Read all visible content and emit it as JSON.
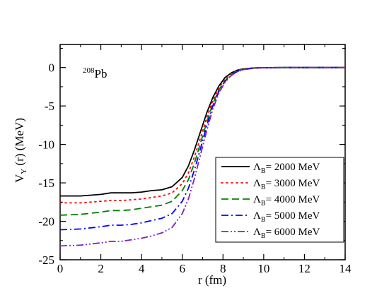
{
  "chart_data": {
    "type": "line",
    "xlabel": "r (fm)",
    "ylabel": "V_Y (r)  (MeV)",
    "ylabel_main": "V",
    "ylabel_sub": "Y",
    "ylabel_rest": " (r)  (MeV)",
    "xlim": [
      0,
      14
    ],
    "ylim": [
      -25,
      3
    ],
    "xticks": [
      0,
      2,
      4,
      6,
      8,
      10,
      12,
      14
    ],
    "yticks": [
      0,
      -5,
      -10,
      -15,
      -20,
      -25
    ],
    "annotation": {
      "sup": "208",
      "text": "Pb",
      "x": 2.2,
      "y": -0.4
    },
    "legend_placement": "lower-right",
    "series": [
      {
        "name": "Λ_B= 2000 MeV",
        "color": "#000000",
        "dash": "",
        "x": [
          0,
          1,
          2,
          2.5,
          3,
          3.5,
          4,
          4.5,
          5,
          5.5,
          6,
          6.3,
          6.6,
          6.9,
          7.2,
          7.5,
          7.8,
          8.1,
          8.4,
          8.7,
          9,
          9.5,
          10,
          11,
          12,
          14
        ],
        "y": [
          -16.7,
          -16.7,
          -16.5,
          -16.3,
          -16.3,
          -16.3,
          -16.2,
          -16.0,
          -15.9,
          -15.5,
          -14.3,
          -12.8,
          -10.7,
          -8.3,
          -5.9,
          -3.9,
          -2.4,
          -1.3,
          -0.7,
          -0.35,
          -0.17,
          -0.06,
          -0.02,
          0,
          0,
          0
        ]
      },
      {
        "name": "Λ_B= 3000 MeV",
        "color": "#ff0000",
        "dash": "2,5",
        "x": [
          0,
          1,
          2,
          2.5,
          3,
          3.5,
          4,
          4.5,
          5,
          5.5,
          6,
          6.3,
          6.6,
          6.9,
          7.2,
          7.5,
          7.8,
          8.1,
          8.4,
          8.7,
          9,
          9.5,
          10,
          11,
          12,
          14
        ],
        "y": [
          -17.6,
          -17.6,
          -17.4,
          -17.3,
          -17.3,
          -17.2,
          -17.1,
          -16.9,
          -16.7,
          -16.3,
          -15.1,
          -13.7,
          -11.6,
          -9.1,
          -6.5,
          -4.3,
          -2.7,
          -1.5,
          -0.8,
          -0.4,
          -0.2,
          -0.07,
          -0.02,
          0,
          0,
          0
        ]
      },
      {
        "name": "Λ_B= 4000 MeV",
        "color": "#008000",
        "dash": "10,5",
        "x": [
          0,
          1,
          2,
          2.5,
          3,
          3.5,
          4,
          4.5,
          5,
          5.5,
          6,
          6.3,
          6.6,
          6.9,
          7.2,
          7.5,
          7.8,
          8.1,
          8.4,
          8.7,
          9,
          9.5,
          10,
          11,
          12,
          14
        ],
        "y": [
          -19.2,
          -19.1,
          -18.8,
          -18.6,
          -18.6,
          -18.5,
          -18.3,
          -18.1,
          -17.9,
          -17.4,
          -16.0,
          -14.6,
          -12.4,
          -9.8,
          -7.1,
          -4.7,
          -2.9,
          -1.7,
          -0.9,
          -0.45,
          -0.22,
          -0.08,
          -0.03,
          0,
          0,
          0
        ]
      },
      {
        "name": "Λ_B= 5000 MeV",
        "color": "#0000ff",
        "dash": "10,4,2,4",
        "x": [
          0,
          1,
          2,
          2.5,
          3,
          3.5,
          4,
          4.5,
          5,
          5.5,
          6,
          6.3,
          6.6,
          6.9,
          7.2,
          7.5,
          7.8,
          8.1,
          8.4,
          8.7,
          9,
          9.5,
          10,
          11,
          12,
          14
        ],
        "y": [
          -21.1,
          -21.0,
          -20.7,
          -20.5,
          -20.5,
          -20.4,
          -20.2,
          -19.9,
          -19.6,
          -19.0,
          -17.4,
          -15.7,
          -13.3,
          -10.5,
          -7.6,
          -5.0,
          -3.1,
          -1.8,
          -1.0,
          -0.5,
          -0.25,
          -0.09,
          -0.03,
          0,
          0,
          0
        ]
      },
      {
        "name": "Λ_B= 6000 MeV",
        "color": "#8020c0",
        "dash": "10,3,2,3,2,3",
        "x": [
          0,
          1,
          2,
          2.5,
          3,
          3.5,
          4,
          4.5,
          5,
          5.5,
          6,
          6.3,
          6.6,
          6.9,
          7.2,
          7.5,
          7.8,
          8.1,
          8.4,
          8.7,
          9,
          9.5,
          10,
          11,
          12,
          14
        ],
        "y": [
          -23.2,
          -23.1,
          -22.8,
          -22.6,
          -22.6,
          -22.4,
          -22.2,
          -21.9,
          -21.5,
          -20.8,
          -19.0,
          -17.1,
          -14.4,
          -11.3,
          -8.2,
          -5.4,
          -3.3,
          -1.9,
          -1.05,
          -0.55,
          -0.27,
          -0.1,
          -0.03,
          0,
          0,
          0
        ]
      }
    ],
    "legend": [
      {
        "main": "Λ",
        "sub": "B",
        "rest": "= 2000 MeV"
      },
      {
        "main": "Λ",
        "sub": "B",
        "rest": "= 3000 MeV"
      },
      {
        "main": "Λ",
        "sub": "B",
        "rest": "= 4000 MeV"
      },
      {
        "main": "Λ",
        "sub": "B",
        "rest": "= 5000 MeV"
      },
      {
        "main": "Λ",
        "sub": "B",
        "rest": "= 6000 MeV"
      }
    ]
  }
}
